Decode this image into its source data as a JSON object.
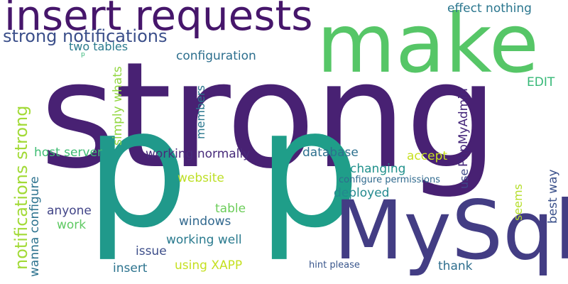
{
  "words": {
    "strong": {
      "text": "strong",
      "color": "#482173"
    },
    "make": {
      "text": "make",
      "color": "#56c667"
    },
    "insert_requests": {
      "text": "insert requests",
      "color": "#46166b"
    },
    "p_left": {
      "text": "p",
      "color": "#20998b"
    },
    "p_right": {
      "text": "p",
      "color": "#1f9e89"
    },
    "mysql": {
      "text": "MySql",
      "color": "#433d84"
    },
    "strong_notifications": {
      "text": "strong notifications",
      "color": "#3b4f8a"
    },
    "effect_nothing": {
      "text": "effect nothing",
      "color": "#2a768e"
    },
    "two_tables": {
      "text": "two tables",
      "color": "#2b7b8e"
    },
    "p_small": {
      "text": "p",
      "color": "#35b779"
    },
    "configuration": {
      "text": "configuration",
      "color": "#2d6f8e"
    },
    "edit": {
      "text": "EDIT",
      "color": "#36b877"
    },
    "notifications_strong": {
      "text": "notifications strong",
      "color": "#a2da37"
    },
    "simply_whats": {
      "text": "simply whats",
      "color": "#92d741"
    },
    "members": {
      "text": "members",
      "color": "#2a778e"
    },
    "phpmyadmin": {
      "text": "PhpMyAdmin",
      "color": "#44257a"
    },
    "host_server": {
      "text": "host server",
      "color": "#3fbc73"
    },
    "working_normally": {
      "text": "working normally",
      "color": "#472a7a"
    },
    "database": {
      "text": "database",
      "color": "#2d708e"
    },
    "accept": {
      "text": "accept",
      "color": "#c8e020"
    },
    "use": {
      "text": "use",
      "color": "#3e4989"
    },
    "best_way": {
      "text": "best way",
      "color": "#3b518b"
    },
    "wanna_configure": {
      "text": "wanna configure",
      "color": "#2c728e"
    },
    "website": {
      "text": "website",
      "color": "#bddf26"
    },
    "changing": {
      "text": "changing",
      "color": "#21918c"
    },
    "configure_permissions": {
      "text": "configure permissions",
      "color": "#306a8e"
    },
    "deployed": {
      "text": "deployed",
      "color": "#23898e"
    },
    "seems": {
      "text": "seems",
      "color": "#b5de2b"
    },
    "anyone": {
      "text": "anyone",
      "color": "#414487"
    },
    "table": {
      "text": "table",
      "color": "#6ccd5a"
    },
    "work": {
      "text": "work",
      "color": "#5ec962"
    },
    "windows": {
      "text": "windows",
      "color": "#31688e"
    },
    "working_well": {
      "text": "working well",
      "color": "#297a8e"
    },
    "issue": {
      "text": "issue",
      "color": "#3d4e8a"
    },
    "insert": {
      "text": "insert",
      "color": "#2c738e"
    },
    "using_xapp": {
      "text": "using XAPP",
      "color": "#c5e021"
    },
    "hint_please": {
      "text": "hint please",
      "color": "#39568c"
    },
    "thank": {
      "text": "thank",
      "color": "#2e6e8e"
    }
  }
}
